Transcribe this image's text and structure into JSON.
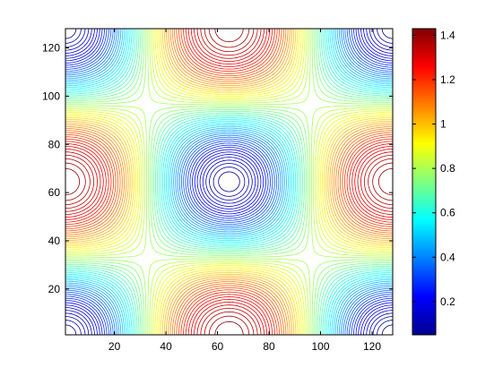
{
  "chart_data": {
    "type": "contour",
    "title": "",
    "xlabel": "",
    "ylabel": "",
    "xlim": [
      1,
      128
    ],
    "ylim": [
      1,
      128
    ],
    "x_ticks": [
      20,
      40,
      60,
      80,
      100,
      120
    ],
    "y_ticks": [
      20,
      40,
      60,
      80,
      100,
      120
    ],
    "field": "z = 1 - 0.5*(cos(2*pi*(x-1)/127) + cos(2*pi*(y-1)/127)) * ... (saddle pattern: minimum at center, maxima at mid-edges)",
    "center_min": 0.05,
    "edge_max": 1.43,
    "contour_levels": 60,
    "colormap": "jet",
    "colorbar": {
      "range": [
        0.05,
        1.43
      ],
      "ticks": [
        0.2,
        0.4,
        0.6,
        0.8,
        1.0,
        1.2,
        1.4
      ],
      "tick_labels": [
        "0.2",
        "0.4",
        "0.6",
        "0.8",
        "1",
        "1.2",
        "1.4"
      ]
    },
    "grid": false
  }
}
